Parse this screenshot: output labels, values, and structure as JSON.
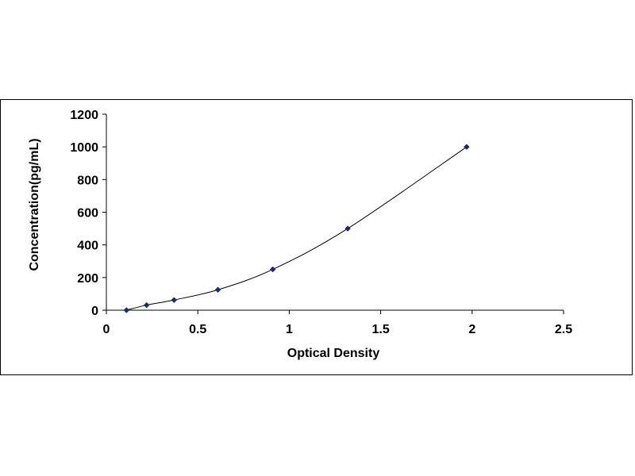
{
  "chart_data": {
    "type": "scatter",
    "title": "",
    "xlabel": "Optical Density",
    "ylabel": "Concentration(pg/mL)",
    "xlim": [
      0,
      2.5
    ],
    "ylim": [
      0,
      1200
    ],
    "x_ticks": [
      "0",
      "0.5",
      "1",
      "1.5",
      "2",
      "2.5"
    ],
    "y_ticks": [
      "0",
      "200",
      "400",
      "600",
      "800",
      "1000",
      "1200"
    ],
    "grid": false,
    "legend": "none",
    "series": [
      {
        "marker": "diamond",
        "trendline": "smooth curve",
        "color": "#1f2a6b",
        "points": [
          {
            "x": 0.11,
            "y": 0
          },
          {
            "x": 0.22,
            "y": 31.25
          },
          {
            "x": 0.37,
            "y": 62.5
          },
          {
            "x": 0.61,
            "y": 125
          },
          {
            "x": 0.91,
            "y": 250
          },
          {
            "x": 1.32,
            "y": 500
          },
          {
            "x": 1.97,
            "y": 1000
          }
        ]
      }
    ]
  }
}
